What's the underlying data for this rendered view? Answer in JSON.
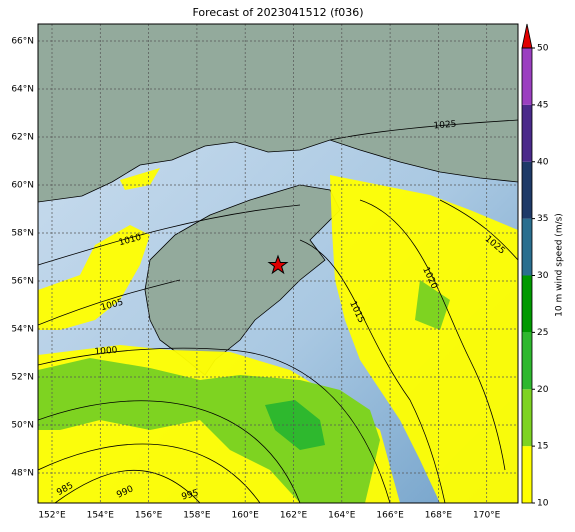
{
  "map": {
    "title": "Forecast of 2023041512 (f036)",
    "lon_labels": [
      "152°E",
      "154°E",
      "156°E",
      "158°E",
      "160°E",
      "162°E",
      "164°E",
      "166°E",
      "168°E",
      "170°E"
    ],
    "lat_labels": [
      "66°N",
      "64°N",
      "62°N",
      "60°N",
      "58°N",
      "56°N",
      "54°N",
      "52°N",
      "50°N",
      "48°N"
    ],
    "contour_labels": [
      "1025",
      "1025",
      "1020",
      "1015",
      "1010",
      "1005",
      "1000",
      "985",
      "990",
      "995"
    ],
    "colorbar": {
      "label": "10 m wind speed (m/s)",
      "ticks": [
        10,
        15,
        20,
        25,
        30,
        35,
        40,
        45,
        50
      ],
      "colors": [
        "#ffff00",
        "#7ed321",
        "#2eb82e",
        "#009900",
        "#2a6f8f",
        "#1e3a68",
        "#4a2a8a",
        "#9b3fc0"
      ],
      "extend_color": "#e00000"
    }
  }
}
